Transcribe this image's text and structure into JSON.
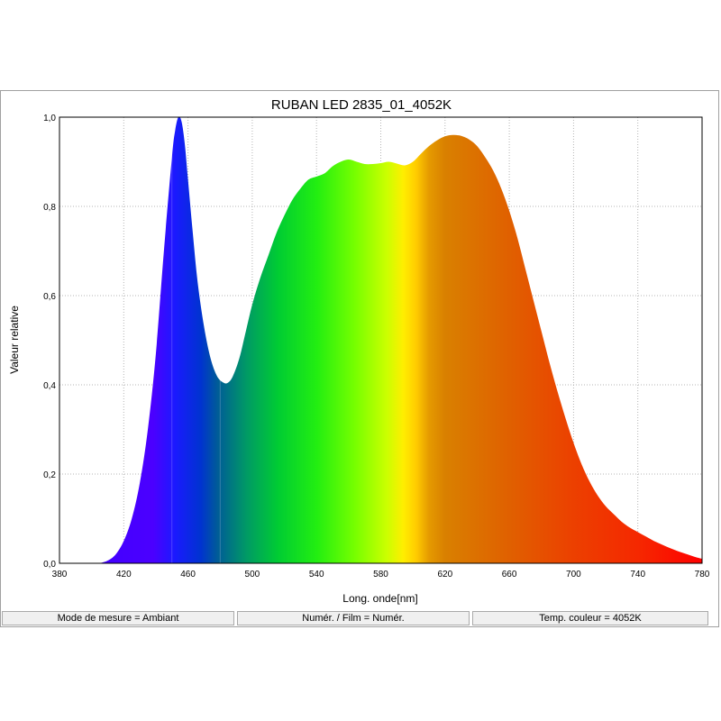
{
  "chart_data": {
    "type": "area",
    "title": "RUBAN LED 2835_01_4052K",
    "xlabel": "Long. onde[nm]",
    "ylabel": "Valeur relative",
    "xlim": [
      380,
      780
    ],
    "ylim": [
      0,
      1.0
    ],
    "x_ticks": [
      "380",
      "420",
      "460",
      "500",
      "540",
      "580",
      "620",
      "660",
      "700",
      "740",
      "780"
    ],
    "y_ticks": [
      "0,0",
      "0,2",
      "0,4",
      "0,6",
      "0,8",
      "1,0"
    ],
    "grid": true,
    "fill": "visible-spectrum-gradient",
    "series": [
      {
        "x": [
          405,
          410,
          415,
          420,
          425,
          430,
          435,
          440,
          445,
          450,
          452,
          454,
          456,
          458,
          460,
          463,
          466,
          470,
          474,
          478,
          482,
          485,
          488,
          492,
          496,
          500,
          505,
          510,
          515,
          520,
          525,
          530,
          535,
          540,
          545,
          550,
          555,
          560,
          565,
          570,
          575,
          580,
          585,
          590,
          595,
          600,
          605,
          610,
          615,
          620,
          625,
          630,
          635,
          640,
          645,
          650,
          655,
          660,
          665,
          670,
          675,
          680,
          685,
          690,
          695,
          700,
          705,
          710,
          715,
          720,
          725,
          730,
          735,
          740,
          745,
          750,
          755,
          760,
          765,
          770,
          775,
          780
        ],
        "y": [
          0.0,
          0.006,
          0.02,
          0.05,
          0.1,
          0.18,
          0.3,
          0.47,
          0.7,
          0.91,
          0.97,
          1.0,
          0.99,
          0.94,
          0.86,
          0.74,
          0.63,
          0.53,
          0.46,
          0.42,
          0.405,
          0.405,
          0.42,
          0.46,
          0.52,
          0.58,
          0.64,
          0.69,
          0.74,
          0.78,
          0.815,
          0.84,
          0.86,
          0.867,
          0.874,
          0.89,
          0.9,
          0.905,
          0.9,
          0.895,
          0.895,
          0.897,
          0.9,
          0.896,
          0.892,
          0.9,
          0.918,
          0.935,
          0.948,
          0.957,
          0.96,
          0.958,
          0.95,
          0.935,
          0.91,
          0.88,
          0.84,
          0.79,
          0.73,
          0.66,
          0.59,
          0.52,
          0.45,
          0.385,
          0.325,
          0.27,
          0.222,
          0.183,
          0.152,
          0.128,
          0.11,
          0.093,
          0.08,
          0.07,
          0.06,
          0.05,
          0.042,
          0.034,
          0.027,
          0.021,
          0.015,
          0.01
        ]
      }
    ]
  },
  "status_bar": {
    "measure_mode": "Mode de mesure = Ambiant",
    "numer_film": "Numér. / Film = Numér.",
    "color_temp": "Temp. couleur = 4052K"
  },
  "colors": {
    "grid": "#b4b4b4",
    "status_bg": "#f0f0f0"
  }
}
